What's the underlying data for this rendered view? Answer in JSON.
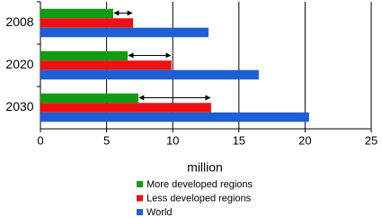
{
  "chart_data": {
    "type": "bar",
    "orientation": "horizontal",
    "x_label": "million",
    "categories": [
      "2008",
      "2020",
      "2030"
    ],
    "series": [
      {
        "name": "More developed regions",
        "color": "#129b12",
        "values": [
          5.5,
          6.6,
          7.4
        ]
      },
      {
        "name": "Less developed regions",
        "color": "#ee1111",
        "values": [
          7.0,
          9.9,
          12.9
        ]
      },
      {
        "name": "World",
        "color": "#1f5fd6",
        "values": [
          12.7,
          16.5,
          20.3
        ]
      }
    ],
    "xlim": [
      0,
      25
    ],
    "xticks": [
      0,
      5,
      10,
      15,
      20,
      25
    ],
    "grid": true
  }
}
